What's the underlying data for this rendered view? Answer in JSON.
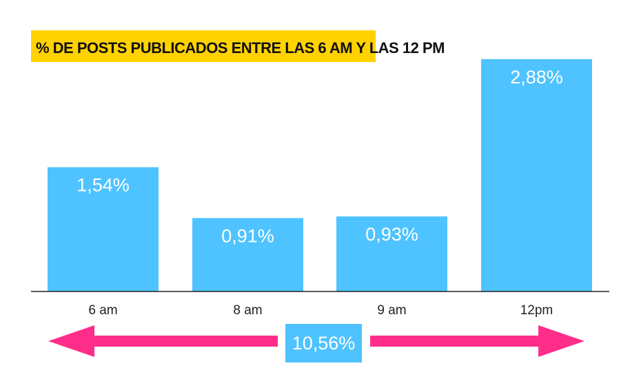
{
  "chart_data": {
    "type": "bar",
    "title": "% DE POSTS PUBLICADOS ENTRE LAS 6 AM Y LAS 12 PM",
    "categories": [
      "6 am",
      "8 am",
      "9 am",
      "12pm"
    ],
    "values": [
      1.54,
      0.91,
      0.93,
      2.88
    ],
    "value_labels": [
      "1,54%",
      "0,91%",
      "0,93%",
      "2,88%"
    ],
    "ylim": [
      0,
      3.1
    ],
    "grid": false,
    "legend": "none",
    "total_label": "10,56%"
  },
  "colors": {
    "bar": "#4fc3ff",
    "title_bg": "#ffd200",
    "title_text": "#111111",
    "arrow": "#ff2d8a",
    "baseline": "#222222",
    "value_text": "#ffffff",
    "tick_text": "#222222",
    "total_bg": "#4fc3ff",
    "total_text": "#ffffff"
  }
}
